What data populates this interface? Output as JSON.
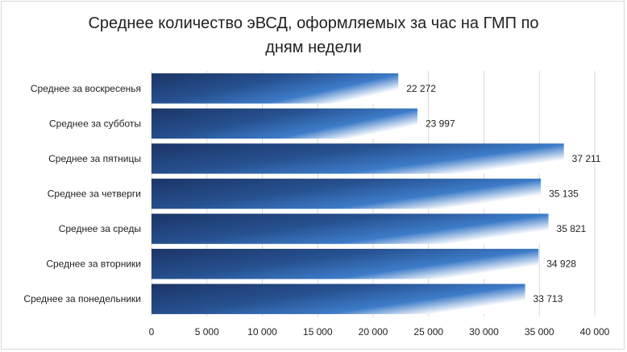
{
  "chart_data": {
    "type": "bar",
    "orientation": "horizontal",
    "title_lines": [
      "Среднее количество эВСД, оформляемых за час на ГМП по",
      "дням недели"
    ],
    "categories": [
      "Среднее за воскресенья",
      "Среднее за субботы",
      "Среднее за пятницы",
      "Среднее за четверги",
      "Среднее за среды",
      "Среднее за вторники",
      "Среднее за понедельники"
    ],
    "values": [
      22272,
      23997,
      37211,
      35135,
      35821,
      34928,
      33713
    ],
    "value_labels": [
      "22 272",
      "23 997",
      "37 211",
      "35 135",
      "35 821",
      "34 928",
      "33 713"
    ],
    "xlim": [
      0,
      40000
    ],
    "xticks": [
      0,
      5000,
      10000,
      15000,
      20000,
      25000,
      30000,
      35000,
      40000
    ],
    "xtick_labels": [
      "0",
      "5 000",
      "10 000",
      "15 000",
      "20 000",
      "25 000",
      "30 000",
      "35 000",
      "40 000"
    ],
    "grid": true,
    "legend": "none",
    "colors": {
      "bar_dark": "#1f3a6e",
      "bar_mid": "#2e6bb5",
      "bar_light": "#ffffff",
      "grid": "#d9d9d9"
    }
  }
}
